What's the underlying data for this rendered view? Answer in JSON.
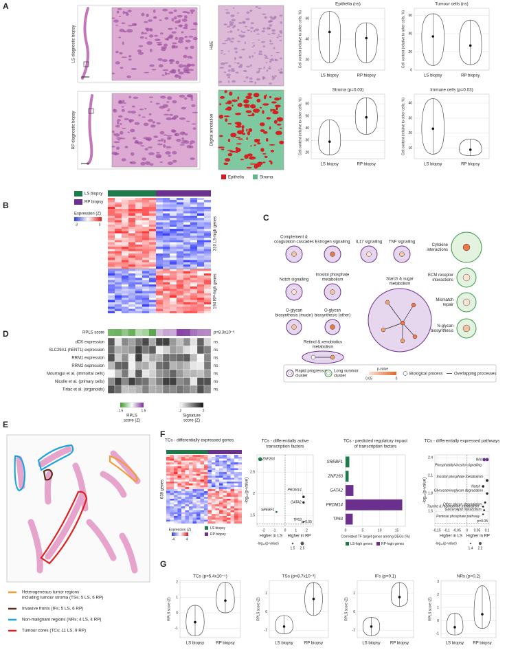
{
  "panel_letters": [
    "A",
    "B",
    "C",
    "D",
    "E",
    "F",
    "G"
  ],
  "panel_a": {
    "row_labels": [
      "LS diagnostic biopsy",
      "RP diagnostic biopsy"
    ],
    "image_labels": [
      "H&E",
      "Digital annotation"
    ],
    "legend": [
      {
        "name": "Epithelia",
        "color": "#d7191c"
      },
      {
        "name": "Stroma",
        "color": "#5fb88a"
      }
    ]
  },
  "panel_b": {
    "legend": [
      {
        "name": "LS biopsy",
        "color": "#1f7a4a"
      },
      {
        "name": "RP biopsy",
        "color": "#6b2f8e"
      }
    ],
    "scale_title": "Expression (Z)",
    "scale_ticks": [
      -3,
      3
    ],
    "row_groups": [
      "310 LS-high genes",
      "194 RP-high genes"
    ]
  },
  "panel_c": {
    "nodes": [
      {
        "label": [
          "Complement &",
          "coagulation cascades"
        ],
        "color": "#6b2f8e"
      },
      {
        "label": [
          "Estrogen signalling"
        ],
        "color": "#6b2f8e"
      },
      {
        "label": [
          "IL17 signalling"
        ],
        "color": "#6b2f8e"
      },
      {
        "label": [
          "TNF signalling"
        ],
        "color": "#6b2f8e"
      },
      {
        "label": [
          "Cytokine",
          "interactions"
        ],
        "color": "#3a9a4a"
      },
      {
        "label": [
          "Notch signalling"
        ],
        "color": "#6b2f8e"
      },
      {
        "label": [
          "Inositol phosphate",
          "metabolism"
        ],
        "color": "#6b2f8e"
      },
      {
        "label": [
          "Starch & sugar",
          "metabolism"
        ],
        "color": "#6b2f8e"
      },
      {
        "label": [
          "ECM receptor",
          "interactions"
        ],
        "color": "#3a9a4a"
      },
      {
        "label": [
          "O-glycan",
          "biosynthesis (mucin)"
        ],
        "color": "#6b2f8e"
      },
      {
        "label": [
          "O-glycan",
          "biosynthesis (other)"
        ],
        "color": "#6b2f8e"
      },
      {
        "label": [
          "Mismatch",
          "repair"
        ],
        "color": "#3a9a4a"
      },
      {
        "label": [
          "N-glycan",
          "biosynthesis"
        ],
        "color": "#3a9a4a"
      },
      {
        "label": [
          "Retinol & xenobiotics",
          "metabolism"
        ],
        "color": "#6b2f8e"
      }
    ],
    "legend": [
      {
        "label": [
          "Rapid progressor",
          "cluster"
        ],
        "color": "#6b2f8e"
      },
      {
        "label": [
          "Long survivor",
          "cluster"
        ],
        "color": "#3a9a4a"
      }
    ],
    "pvalue_title": "p-value",
    "pvalue_ticks": [
      0.05,
      0
    ],
    "process_label": "Biological process",
    "overlap_label": "Overlapping processes"
  },
  "panel_d": {
    "score_label": "RPLS score",
    "score_p": "p=8.3x10⁻⁶",
    "rows": [
      "dCK expression",
      "SLC29A1 (hENT1) expression",
      "RRM1 expression",
      "RRM2 expression",
      "Mourragui et al. (immortal cells)",
      "Nicolle et al. (primary cells)",
      "Tiriac et al. (organoids)"
    ],
    "row_p": [
      "ns",
      "ns",
      "ns",
      "ns",
      "ns",
      "ns",
      "ns"
    ],
    "legend_rpls": {
      "title": [
        "RPLS",
        "score (Z)"
      ],
      "ticks": [
        -1.5,
        1.5
      ]
    },
    "legend_signature": {
      "title": [
        "Signature",
        "score (Z)"
      ],
      "ticks": [
        -2,
        2
      ]
    }
  },
  "panel_e": {
    "legend": [
      {
        "label": [
          "Heterogeneous tumor regions",
          "including tumour stroma (TSs; 5 LS, 6 RP)"
        ],
        "color": "#f39c34"
      },
      {
        "label": [
          "Invasive fronts (IFs; 5 LS, 6 RP)"
        ],
        "color": "#5a2d1a"
      },
      {
        "label": [
          "Non-malignant regions (NRs; 4 LS, 4 RP)"
        ],
        "color": "#1ba3e0"
      },
      {
        "label": [
          "Tumour cores (TCs; 11 LS, 9 RP)"
        ],
        "color": "#e02020"
      }
    ]
  },
  "panel_f": {
    "title": "TCs - differentially expressed genes",
    "row_label": "639 genes",
    "scale_title": "Expression (Z)",
    "scale_ticks": [
      -4,
      4
    ],
    "legend": [
      {
        "name": "LS biopsy",
        "color": "#1f7a4a"
      },
      {
        "name": "RP biopsy",
        "color": "#6b2f8e"
      }
    ]
  },
  "chart_data": [
    {
      "type": "violin",
      "title": "Epithelia (ns)",
      "ylabel": "Cell content (relative to other cells, %)",
      "categories": [
        "LS biopsy",
        "RP biopsy"
      ],
      "values": [
        47,
        41
      ],
      "low": [
        17,
        17
      ],
      "high": [
        67,
        56
      ],
      "ylim": [
        10,
        70
      ],
      "yticks": [
        20,
        40,
        60
      ]
    },
    {
      "type": "violin",
      "title": "Tumour cells (ns)",
      "ylabel": "Cell content (relative to other cells, %)",
      "categories": [
        "LS biopsy",
        "RP biopsy"
      ],
      "values": [
        37,
        27
      ],
      "low": [
        5,
        6
      ],
      "high": [
        62,
        55
      ],
      "ylim": [
        0,
        68
      ],
      "yticks": [
        0,
        20,
        40,
        60
      ]
    },
    {
      "type": "violin",
      "title": "Stroma (p=0.03)",
      "ylabel": "Cell content (relative to other cells, %)",
      "categories": [
        "LS biopsy",
        "RP biopsy"
      ],
      "values": [
        29,
        49
      ],
      "low": [
        18,
        35
      ],
      "high": [
        47,
        65
      ],
      "ylim": [
        15,
        68
      ],
      "yticks": [
        20,
        30,
        40,
        50,
        60
      ]
    },
    {
      "type": "violin",
      "title": "Immune cells (p=0.03)",
      "ylabel": "Cell content (relative to other cells, %)",
      "categories": [
        "LS biopsy",
        "RP biopsy"
      ],
      "values": [
        23,
        9
      ],
      "low": [
        6,
        5
      ],
      "high": [
        43,
        16
      ],
      "ylim": [
        3,
        46
      ],
      "yticks": [
        10,
        20,
        30,
        40
      ]
    },
    {
      "type": "scatter",
      "title": [
        "TCs - differentially active",
        "transcription factors"
      ],
      "ylabel": "-log₁₀(p-value)",
      "labels": [
        "ZNF263",
        "SREBF1",
        "PRDM14",
        "GATA2",
        "TP63"
      ],
      "x": [
        -2.3,
        -0.8,
        1.7,
        1.7,
        1.7
      ],
      "values": [
        2.8,
        1.58,
        1.93,
        1.8,
        1.35
      ],
      "colors": [
        "#1f7a4a",
        "#1f7a4a",
        "#222222",
        "#222222",
        "#222222"
      ],
      "xlim": [
        -2.6,
        2.6
      ],
      "xticks": [
        -2,
        -1,
        0,
        1,
        2
      ],
      "ylim": [
        1.25,
        2.9
      ],
      "yticks": [
        1.5,
        2,
        2.5
      ],
      "threshold": {
        "value": 1.3,
        "label": "p=0.05"
      },
      "x_annotations": [
        "Higher in LS",
        "Higher in RP"
      ],
      "size_legend": {
        "title": "-log₁₀(p-value)",
        "values": [
          1.5,
          2.5
        ]
      }
    },
    {
      "type": "hbar",
      "title": [
        "TCs - predicted regulatory impact",
        "of transcription factors"
      ],
      "xlabel": "Correlated TF target genes among DEGs (%)",
      "categories": [
        "SREBF1",
        "ZNF263",
        "GATA2",
        "PRDM14",
        "TP63"
      ],
      "values": [
        1.1,
        0.9,
        2.3,
        16.6,
        2.1
      ],
      "colors": [
        "#1f7a4a",
        "#1f7a4a",
        "#6b2f8e",
        "#6b2f8e",
        "#6b2f8e"
      ],
      "xlim": [
        0,
        17.5
      ],
      "xticks": [
        0,
        5,
        10,
        15
      ],
      "legend": [
        {
          "name": "LS-high genes",
          "color": "#1f7a4a"
        },
        {
          "name": "RP-high genes",
          "color": "#6b2f8e"
        }
      ]
    },
    {
      "type": "scatter",
      "title": [
        "TCs - differentially expressed pathways"
      ],
      "ylabel": "-log₁₀(p-value)",
      "labels": [
        "Wnt",
        "Phosphatidyl-inositol signalling",
        "Inositol phosphate metabolism",
        "Notch",
        "Glycosaminoglycan degradation",
        "Other glycan degradation",
        "Taurine & hypotaurine metabolism",
        "Glycerolipid metabolism",
        "Pentose phosphate pathway"
      ],
      "x": [
        0.085,
        0.1,
        0.1,
        0.08,
        0.1,
        0.09,
        0.08,
        0.085,
        0.08
      ],
      "values": [
        2.37,
        2.37,
        2.02,
        1.92,
        1.8,
        1.65,
        1.58,
        1.52,
        1.45
      ],
      "colors": [
        "#6b2f8e",
        "#6b2f8e",
        "#222222",
        "#222222",
        "#222222",
        "#222222",
        "#222222",
        "#222222",
        "#222222"
      ],
      "xlim": [
        -0.16,
        0.11
      ],
      "xticks": [
        -0.15,
        -0.1,
        -0.05,
        0,
        0.05,
        0.1
      ],
      "ylim": [
        1.25,
        2.45
      ],
      "yticks": [
        1.5,
        1.8,
        2.1,
        2.4
      ],
      "threshold": {
        "value": 1.3,
        "label": "p=0.05"
      },
      "x_annotations": [
        "Higher in LS",
        "Higher in RP"
      ],
      "size_legend": {
        "title": "-log₁₀(p-value)",
        "values": [
          1.4,
          2.2
        ]
      }
    },
    {
      "type": "violin",
      "title": "TCs (p=5.4x10⁻⁴)",
      "ylabel": "RPLS score (Z)",
      "categories": [
        "LS biopsy",
        "RP biopsy"
      ],
      "values": [
        -0.6,
        0.8
      ],
      "low": [
        -1.5,
        0
      ],
      "high": [
        0.5,
        2.0
      ],
      "ylim": [
        -1.6,
        2.1
      ],
      "yticks": [
        -1,
        0,
        1,
        2
      ]
    },
    {
      "type": "violin",
      "title": "TSs (p=8.7x10⁻³)",
      "ylabel": "RPLS score (Z)",
      "categories": [
        "LS biopsy",
        "RP biopsy"
      ],
      "values": [
        -0.8,
        0.7
      ],
      "low": [
        -1.2,
        -0.2
      ],
      "high": [
        -0.2,
        1.6
      ],
      "ylim": [
        -1.4,
        1.7
      ],
      "yticks": [
        -1,
        0,
        1
      ]
    },
    {
      "type": "violin",
      "title": "IFs (p=0.1)",
      "ylabel": "RPLS score (Z)",
      "categories": [
        "LS biopsy",
        "RP biopsy"
      ],
      "values": [
        -0.8,
        0.8
      ],
      "low": [
        -1.3,
        0.3
      ],
      "high": [
        -0.3,
        1.6
      ],
      "ylim": [
        -1.4,
        1.7
      ],
      "yticks": [
        -1,
        0,
        1
      ]
    },
    {
      "type": "violin",
      "title": "NRs (p=0.2)",
      "ylabel": "RPLS score (Z)",
      "categories": [
        "LS biopsy",
        "RP biopsy"
      ],
      "values": [
        -0.5,
        0.5
      ],
      "low": [
        -1.1,
        -0.6
      ],
      "high": [
        0.6,
        2.7
      ],
      "ylim": [
        -1.3,
        3.1
      ],
      "yticks": [
        -1,
        0,
        1,
        2,
        3
      ]
    }
  ]
}
